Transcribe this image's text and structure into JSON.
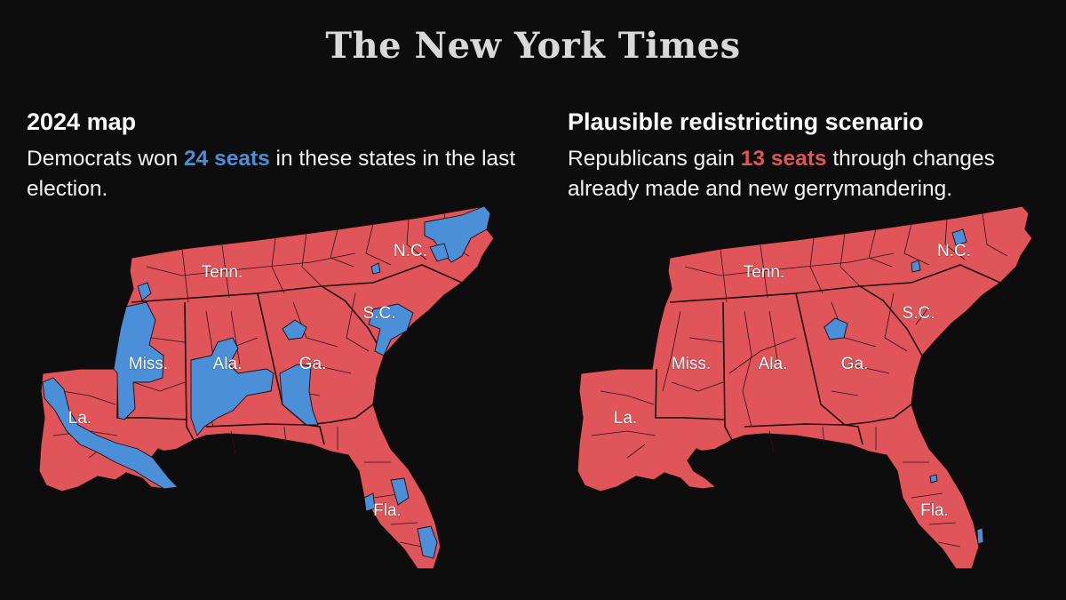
{
  "masthead": "The New York Times",
  "colors": {
    "background": "#0d0d0d",
    "republican": "#e0555a",
    "democrat": "#4b8fd8",
    "borders": "#1a0c0c"
  },
  "left_panel": {
    "title": "2024 map",
    "subtitle_pre": "Democrats won ",
    "subtitle_highlight": "24 seats",
    "subtitle_post": " in these states in the last election.",
    "state_labels": [
      "Tenn.",
      "N.C.",
      "S.C.",
      "Miss.",
      "Ala.",
      "Ga.",
      "La.",
      "Fla."
    ]
  },
  "right_panel": {
    "title": "Plausible redistricting scenario",
    "subtitle_pre": "Republicans gain ",
    "subtitle_highlight": "13 seats",
    "subtitle_post": " through changes already made and new gerrymandering.",
    "state_labels": [
      "Tenn.",
      "N.C.",
      "S.C.",
      "Miss.",
      "Ala.",
      "Ga.",
      "La.",
      "Fla."
    ]
  }
}
